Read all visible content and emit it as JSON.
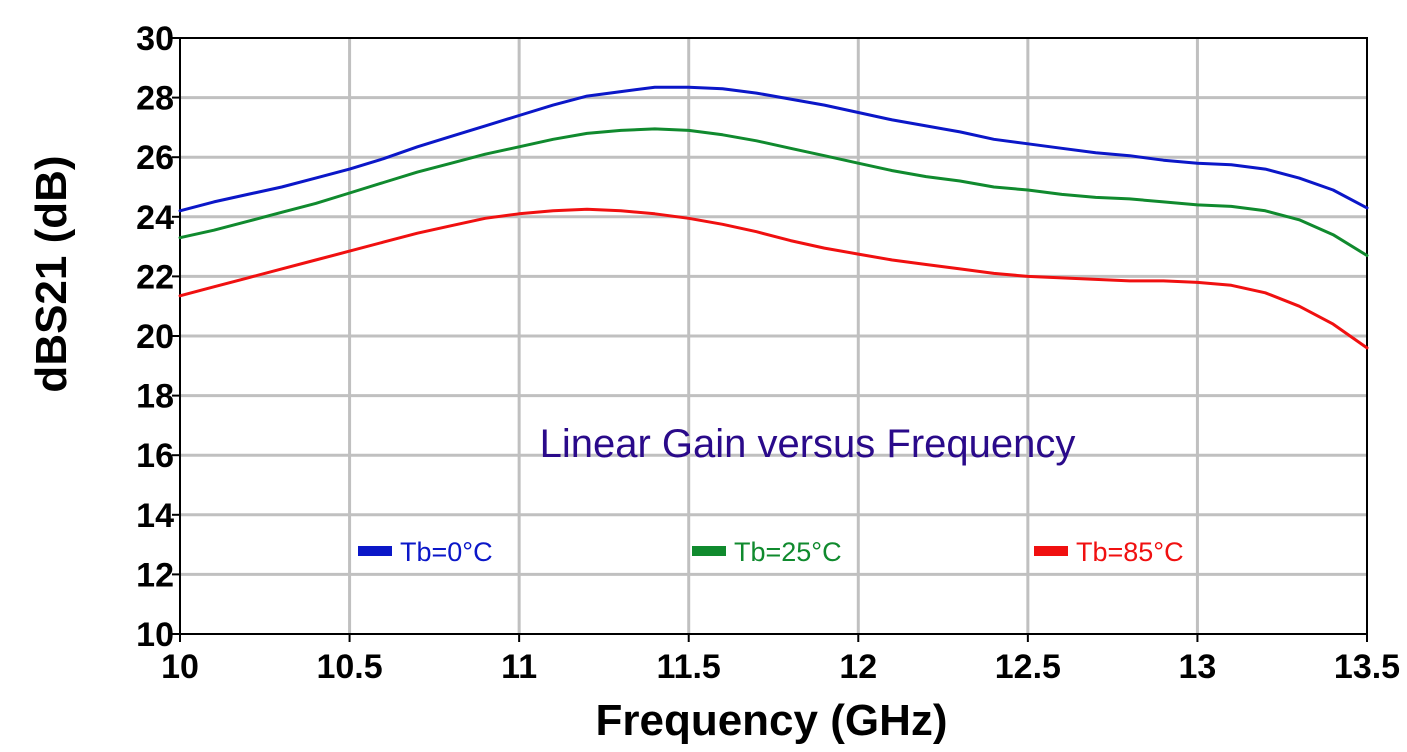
{
  "chart_data": {
    "type": "line",
    "title": "Linear Gain versus Frequency",
    "xlabel": "Frequency (GHz)",
    "ylabel": "dBS21 (dB)",
    "xlim": [
      10,
      13.5
    ],
    "ylim": [
      10,
      30
    ],
    "xticks": [
      "10",
      "10.5",
      "11",
      "11.5",
      "12",
      "12.5",
      "13",
      "13.5"
    ],
    "yticks": [
      "10",
      "12",
      "14",
      "16",
      "18",
      "20",
      "22",
      "24",
      "26",
      "28",
      "30"
    ],
    "grid": true,
    "legend_position": "bottom-inside",
    "title_color": "#2a0a8a",
    "x": [
      10.0,
      10.1,
      10.2,
      10.3,
      10.4,
      10.5,
      10.6,
      10.7,
      10.8,
      10.9,
      11.0,
      11.1,
      11.2,
      11.3,
      11.4,
      11.5,
      11.6,
      11.7,
      11.8,
      11.9,
      12.0,
      12.1,
      12.2,
      12.3,
      12.4,
      12.5,
      12.6,
      12.7,
      12.8,
      12.9,
      13.0,
      13.1,
      13.2,
      13.3,
      13.4,
      13.5
    ],
    "series": [
      {
        "name": "Tb=0°C",
        "color": "#0b17c8",
        "values": [
          24.2,
          24.5,
          24.75,
          25.0,
          25.3,
          25.6,
          25.95,
          26.35,
          26.7,
          27.05,
          27.4,
          27.75,
          28.05,
          28.2,
          28.35,
          28.35,
          28.3,
          28.15,
          27.95,
          27.75,
          27.5,
          27.25,
          27.05,
          26.85,
          26.6,
          26.45,
          26.3,
          26.15,
          26.05,
          25.9,
          25.8,
          25.75,
          25.6,
          25.3,
          24.9,
          24.3
        ]
      },
      {
        "name": "Tb=25°C",
        "color": "#108a2e",
        "values": [
          23.3,
          23.55,
          23.85,
          24.15,
          24.45,
          24.8,
          25.15,
          25.5,
          25.8,
          26.1,
          26.35,
          26.6,
          26.8,
          26.9,
          26.95,
          26.9,
          26.75,
          26.55,
          26.3,
          26.05,
          25.8,
          25.55,
          25.35,
          25.2,
          25.0,
          24.9,
          24.75,
          24.65,
          24.6,
          24.5,
          24.4,
          24.35,
          24.2,
          23.9,
          23.4,
          22.7
        ]
      },
      {
        "name": "Tb=85°C",
        "color": "#f01010",
        "values": [
          21.35,
          21.65,
          21.95,
          22.25,
          22.55,
          22.85,
          23.15,
          23.45,
          23.7,
          23.95,
          24.1,
          24.2,
          24.25,
          24.2,
          24.1,
          23.95,
          23.75,
          23.5,
          23.2,
          22.95,
          22.75,
          22.55,
          22.4,
          22.25,
          22.1,
          22.0,
          21.95,
          21.9,
          21.85,
          21.85,
          21.8,
          21.7,
          21.45,
          21.0,
          20.4,
          19.6
        ]
      }
    ]
  }
}
